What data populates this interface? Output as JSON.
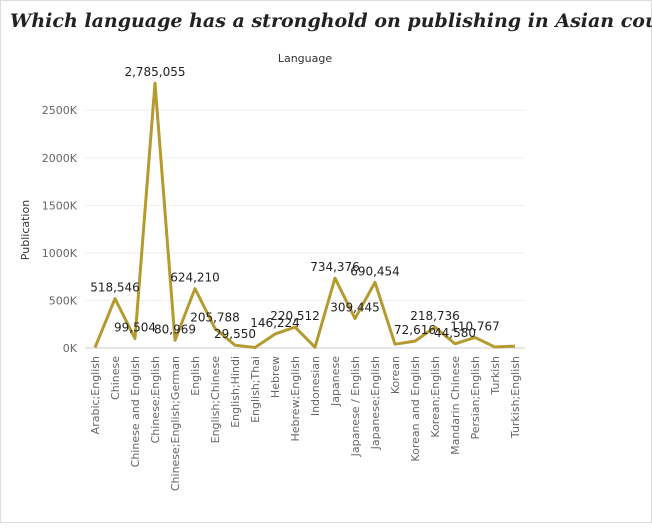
{
  "chart_data": {
    "type": "line",
    "title": "Which language has a stronghold on publishing in Asian countries?",
    "x_label": "Language",
    "y_label": "Publication",
    "categories": [
      "Arabic;English",
      "Chinese",
      "Chinese and English",
      "Chinese;English",
      "Chinese;English;German",
      "English",
      "English;Chinese",
      "English;Hindi",
      "English;Thai",
      "Hebrew",
      "Hebrew;English",
      "Indonesian",
      "Japanese",
      "Japanese / English",
      "Japanese;English",
      "Korean",
      "Korean and English",
      "Korean;English",
      "Mandarin Chinese",
      "Persian;English",
      "Turkish",
      "Turkish;English"
    ],
    "series": [
      {
        "name": "Publication",
        "color": "#b59a30",
        "values": [
          5000,
          518546,
          99504,
          2785055,
          80969,
          624210,
          205788,
          29550,
          5000,
          146224,
          220512,
          8000,
          734376,
          309445,
          690454,
          40000,
          72616,
          218736,
          44580,
          110767,
          10000,
          20000
        ],
        "value_labels": [
          null,
          "518,546",
          "99,504",
          "2,785,055",
          "80,969",
          "624,210",
          "205,788",
          "29,550",
          null,
          "146,224",
          "220,512",
          null,
          "734,376",
          "309,445",
          "690,454",
          null,
          "72,616",
          "218,736",
          "44,580",
          "110,767",
          null,
          null
        ]
      }
    ],
    "ylim": [
      0,
      2870000
    ],
    "yticks": [
      {
        "value": 0,
        "label": "0K"
      },
      {
        "value": 500000,
        "label": "500K"
      },
      {
        "value": 1000000,
        "label": "1000K"
      },
      {
        "value": 1500000,
        "label": "1500K"
      },
      {
        "value": 2000000,
        "label": "2000K"
      },
      {
        "value": 2500000,
        "label": "2500K"
      }
    ],
    "grid": true
  }
}
